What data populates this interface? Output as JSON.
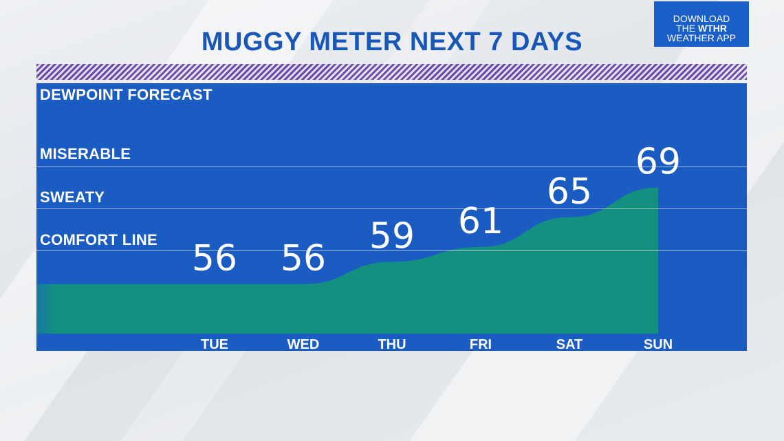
{
  "title": "MUGGY METER NEXT 7 DAYS",
  "badge": {
    "line1": "DOWNLOAD",
    "line2_pre": "THE ",
    "line2_bold": "WTHR",
    "line3": "WEATHER APP"
  },
  "panel": {
    "heading": "DEWPOINT FORECAST",
    "levels": [
      "MISERABLE",
      "SWEATY",
      "COMFORT LINE"
    ]
  },
  "colors": {
    "title": "#1857b6",
    "panel": "#1a5cc2",
    "area": "#13907f",
    "stripe": "#6b4aa8"
  },
  "chart_data": {
    "type": "area",
    "title": "DEWPOINT FORECAST",
    "categories": [
      "TUE",
      "WED",
      "THU",
      "FRI",
      "SAT",
      "SUN"
    ],
    "values": [
      56,
      56,
      59,
      61,
      65,
      69
    ],
    "data_labels": [
      "56",
      "56",
      "59",
      "61",
      "65",
      "69"
    ],
    "grid": true
  }
}
